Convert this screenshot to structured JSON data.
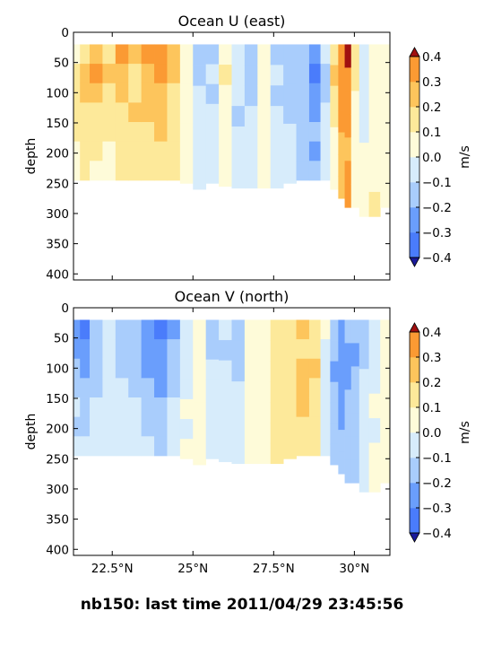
{
  "footer": {
    "text": "nb150: last time 2011/04/29 23:45:56"
  },
  "colors": {
    "levels": [
      "#2b4cf5",
      "#4a7cfb",
      "#6a9efc",
      "#a9cdfc",
      "#d7ecfb",
      "#fefbd9",
      "#fde99a",
      "#fdc55c",
      "#fb9a33",
      "#f36a1c",
      "#c41a0a"
    ],
    "over": "#a01010",
    "under": "#1a1a9a"
  },
  "chart_data": [
    {
      "type": "heatmap",
      "title": "Ocean U (east)",
      "ylabel": "depth",
      "xlim": [
        21.3,
        31.1
      ],
      "ylim": [
        410,
        0
      ],
      "x_ticks": [
        {
          "value": 22.5,
          "label": "22.5°N"
        },
        {
          "value": 25,
          "label": "25°N"
        },
        {
          "value": 27.5,
          "label": "27.5°N"
        },
        {
          "value": 30,
          "label": "30°N"
        }
      ],
      "y_ticks": [
        0,
        50,
        100,
        150,
        200,
        250,
        300,
        350,
        400
      ],
      "colorbar": {
        "label": "m/s",
        "levels": [
          -0.4,
          -0.3,
          -0.2,
          -0.1,
          0.0,
          0.1,
          0.2,
          0.3,
          0.4
        ],
        "tick_labels": [
          "−0.4",
          "−0.3",
          "−0.2",
          "−0.1",
          "0.0",
          "0.1",
          "0.2",
          "0.3",
          "0.4"
        ],
        "extend": "both"
      },
      "surface_depth": 20,
      "x_columns": [
        21.4,
        21.6,
        22.0,
        22.4,
        22.8,
        23.2,
        23.6,
        24.0,
        24.4,
        24.8,
        25.2,
        25.6,
        26.0,
        26.4,
        26.8,
        27.2,
        27.6,
        28.0,
        28.4,
        28.8,
        29.1,
        29.4,
        29.6,
        29.8,
        30.0,
        30.3,
        30.6,
        31.0
      ],
      "bottom_depth": [
        245,
        245,
        245,
        245,
        245,
        245,
        245,
        245,
        245,
        250,
        260,
        250,
        255,
        258,
        258,
        258,
        258,
        250,
        245,
        245,
        245,
        260,
        275,
        290,
        290,
        305,
        305,
        290
      ],
      "values": [
        [
          0.05,
          0.12,
          0.1,
          0.15,
          0.1,
          0.08,
          0.05
        ],
        [
          0.15,
          0.25,
          0.2,
          0.15,
          0.1,
          0.12,
          0.1
        ],
        [
          0.2,
          0.3,
          0.25,
          0.18,
          0.12,
          0.1,
          0.08
        ],
        [
          0.15,
          0.2,
          0.18,
          0.15,
          0.12,
          0.08,
          0.05
        ],
        [
          0.3,
          0.25,
          0.2,
          0.18,
          0.15,
          0.12,
          0.1
        ],
        [
          0.2,
          0.15,
          0.18,
          0.2,
          0.15,
          0.12,
          0.1
        ],
        [
          0.3,
          0.28,
          0.25,
          0.22,
          0.18,
          0.15,
          0.15
        ],
        [
          0.38,
          0.32,
          0.28,
          0.25,
          0.22,
          0.18,
          0.15
        ],
        [
          0.25,
          0.2,
          0.15,
          0.15,
          0.12,
          0.1,
          0.1
        ],
        [
          0.05,
          0.02,
          0.0,
          0.05,
          0.02,
          0.0,
          0.0
        ],
        [
          -0.15,
          -0.12,
          -0.1,
          -0.05,
          -0.02,
          -0.05,
          -0.05
        ],
        [
          -0.12,
          -0.1,
          -0.15,
          -0.1,
          -0.05,
          -0.08,
          -0.05
        ],
        [
          0.05,
          0.1,
          0.05,
          0.02,
          0.0,
          0.05,
          0.0
        ],
        [
          -0.05,
          -0.1,
          -0.08,
          -0.12,
          -0.05,
          -0.02,
          -0.02
        ],
        [
          -0.12,
          -0.15,
          -0.12,
          -0.1,
          -0.05,
          -0.05,
          -0.05
        ],
        [
          0.05,
          0.02,
          0.05,
          0.08,
          0.05,
          0.02,
          0.02
        ],
        [
          -0.15,
          -0.1,
          -0.12,
          -0.1,
          -0.05,
          -0.05,
          -0.05
        ],
        [
          -0.12,
          -0.15,
          -0.12,
          -0.12,
          -0.1,
          -0.1,
          -0.1
        ],
        [
          -0.15,
          -0.2,
          -0.15,
          -0.18,
          -0.12,
          -0.15,
          -0.15
        ],
        [
          -0.3,
          -0.35,
          -0.28,
          -0.25,
          -0.2,
          -0.22,
          -0.2
        ],
        [
          -0.1,
          -0.15,
          -0.12,
          -0.1,
          -0.08,
          -0.05,
          -0.05
        ],
        [
          0.1,
          0.2,
          0.15,
          0.1,
          0.08,
          0.05,
          0.05
        ],
        [
          0.3,
          0.35,
          0.32,
          0.3,
          0.28,
          0.28,
          0.28
        ],
        [
          0.4,
          0.38,
          0.35,
          0.3,
          0.28,
          0.3,
          0.3
        ],
        [
          0.15,
          0.1,
          0.05,
          0.05,
          0.02,
          0.0,
          0.0
        ],
        [
          -0.05,
          -0.1,
          -0.05,
          -0.02,
          0.0,
          0.02,
          0.05
        ],
        [
          0.05,
          0.02,
          0.05,
          0.08,
          0.05,
          0.05,
          0.1
        ],
        [
          0.05,
          0.05,
          0.05,
          0.05,
          0.05,
          0.05,
          0.05
        ]
      ]
    },
    {
      "type": "heatmap",
      "title": "Ocean V (north)",
      "ylabel": "depth",
      "xlim": [
        21.3,
        31.1
      ],
      "ylim": [
        410,
        0
      ],
      "x_ticks": [
        {
          "value": 22.5,
          "label": "22.5°N"
        },
        {
          "value": 25,
          "label": "25°N"
        },
        {
          "value": 27.5,
          "label": "27.5°N"
        },
        {
          "value": 30,
          "label": "30°N"
        }
      ],
      "y_ticks": [
        0,
        50,
        100,
        150,
        200,
        250,
        300,
        350,
        400
      ],
      "colorbar": {
        "label": "m/s",
        "levels": [
          -0.4,
          -0.3,
          -0.2,
          -0.1,
          0.0,
          0.1,
          0.2,
          0.3,
          0.4
        ],
        "tick_labels": [
          "−0.4",
          "−0.3",
          "−0.2",
          "−0.1",
          "0.0",
          "0.1",
          "0.2",
          "0.3",
          "0.4"
        ],
        "extend": "both"
      },
      "surface_depth": 20,
      "x_columns": [
        21.4,
        21.6,
        22.0,
        22.4,
        22.8,
        23.2,
        23.6,
        24.0,
        24.4,
        24.8,
        25.2,
        25.6,
        26.0,
        26.4,
        26.8,
        27.2,
        27.6,
        28.0,
        28.4,
        28.8,
        29.1,
        29.4,
        29.6,
        29.8,
        30.0,
        30.3,
        30.6,
        31.0
      ],
      "bottom_depth": [
        245,
        245,
        245,
        245,
        245,
        245,
        245,
        245,
        245,
        250,
        260,
        250,
        255,
        258,
        258,
        258,
        258,
        250,
        245,
        245,
        245,
        260,
        275,
        290,
        290,
        305,
        305,
        290
      ],
      "values": [
        [
          -0.3,
          -0.25,
          -0.2,
          -0.15,
          -0.1,
          -0.12,
          -0.1
        ],
        [
          -0.35,
          -0.3,
          -0.25,
          -0.2,
          -0.15,
          -0.15,
          -0.1
        ],
        [
          -0.15,
          -0.18,
          -0.15,
          -0.12,
          -0.1,
          -0.08,
          -0.05
        ],
        [
          -0.05,
          -0.1,
          -0.08,
          -0.05,
          -0.02,
          -0.05,
          -0.02
        ],
        [
          -0.2,
          -0.15,
          -0.12,
          -0.1,
          -0.08,
          -0.05,
          -0.05
        ],
        [
          -0.15,
          -0.2,
          -0.18,
          -0.15,
          -0.1,
          -0.08,
          -0.05
        ],
        [
          -0.25,
          -0.3,
          -0.25,
          -0.2,
          -0.15,
          -0.12,
          -0.1
        ],
        [
          -0.38,
          -0.3,
          -0.25,
          -0.22,
          -0.2,
          -0.15,
          -0.12
        ],
        [
          -0.25,
          -0.2,
          -0.15,
          -0.12,
          -0.1,
          -0.1,
          -0.08
        ],
        [
          -0.1,
          -0.05,
          -0.05,
          -0.02,
          0.0,
          -0.02,
          0.0
        ],
        [
          0.05,
          0.02,
          0.0,
          0.02,
          0.0,
          0.02,
          0.0
        ],
        [
          -0.15,
          -0.12,
          -0.1,
          -0.08,
          -0.05,
          -0.05,
          -0.05
        ],
        [
          -0.1,
          -0.12,
          -0.1,
          -0.08,
          -0.05,
          -0.05,
          -0.05
        ],
        [
          -0.15,
          -0.12,
          -0.12,
          -0.1,
          -0.08,
          -0.05,
          -0.05
        ],
        [
          0.05,
          0.02,
          0.05,
          0.02,
          0.0,
          0.02,
          0.0
        ],
        [
          0.02,
          0.05,
          0.02,
          0.05,
          0.05,
          0.02,
          0.02
        ],
        [
          0.12,
          0.1,
          0.15,
          0.12,
          0.1,
          0.12,
          0.1
        ],
        [
          0.15,
          0.18,
          0.15,
          0.15,
          0.12,
          0.15,
          0.12
        ],
        [
          0.2,
          0.18,
          0.2,
          0.25,
          0.2,
          0.18,
          0.15
        ],
        [
          0.15,
          0.12,
          0.2,
          0.15,
          0.15,
          0.12,
          0.12
        ],
        [
          0.02,
          -0.05,
          -0.1,
          -0.05,
          -0.1,
          -0.1,
          -0.1
        ],
        [
          -0.15,
          -0.2,
          -0.25,
          -0.2,
          -0.18,
          -0.15,
          -0.15
        ],
        [
          -0.25,
          -0.3,
          -0.28,
          -0.25,
          -0.22,
          -0.2,
          -0.2
        ],
        [
          -0.2,
          -0.25,
          -0.22,
          -0.2,
          -0.18,
          -0.2,
          -0.2
        ],
        [
          -0.2,
          -0.22,
          -0.2,
          -0.18,
          -0.2,
          -0.2,
          -0.2
        ],
        [
          -0.15,
          -0.12,
          -0.1,
          -0.08,
          -0.05,
          -0.05,
          -0.05
        ],
        [
          -0.05,
          -0.02,
          -0.02,
          0.0,
          -0.02,
          0.0,
          0.0
        ],
        [
          0.02,
          0.0,
          0.02,
          0.0,
          0.0,
          0.0,
          0.0
        ]
      ]
    }
  ]
}
